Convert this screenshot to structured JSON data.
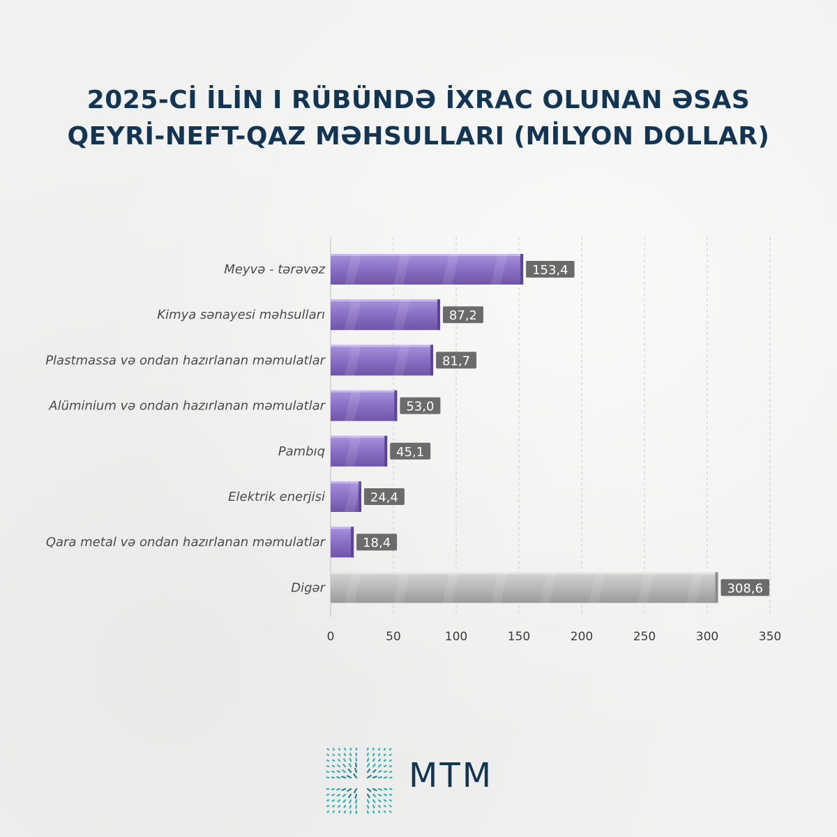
{
  "title_lines": [
    "2025-Cİ İLİN I RÜBÜNDƏ İXRAC OLUNAN ƏSAS",
    "QEYRİ-NEFT-QAZ MƏHSULLARI (MİLYON DOLLAR)"
  ],
  "colors": {
    "title": "#123553",
    "bar_purple": "#8b72c2",
    "bar_gray": "#b8b8b8",
    "label_box": "#6b6b6b"
  },
  "chart_data": {
    "type": "bar",
    "orientation": "horizontal",
    "title": "2025-Cİ İLİN I RÜBÜNDƏ İXRAC OLUNAN ƏSAS QEYRİ-NEFT-QAZ MƏHSULLARI (MİLYON DOLLAR)",
    "categories": [
      "Meyvə - tərəvəz",
      "Kimya sənayesi məhsulları",
      "Plastmassa və ondan hazırlanan məmulatlar",
      "Alüminium və ondan hazırlanan məmulatlar",
      "Pambıq",
      "Elektrik enerjisi",
      "Qara metal və ondan hazırlanan məmulatlar",
      "Digər"
    ],
    "values": [
      153.4,
      87.2,
      81.7,
      53.0,
      45.1,
      24.4,
      18.4,
      308.6
    ],
    "value_labels": [
      "153,4",
      "87,2",
      "81,7",
      "53,0",
      "45,1",
      "24,4",
      "18,4",
      "308,6"
    ],
    "bar_colors": [
      "purple",
      "purple",
      "purple",
      "purple",
      "purple",
      "purple",
      "purple",
      "gray"
    ],
    "xlim": [
      0,
      350
    ],
    "xticks": [
      0,
      50,
      100,
      150,
      200,
      250,
      300,
      350
    ],
    "grid": "vertical dashed",
    "xlabel": "",
    "ylabel": ""
  },
  "logo": {
    "text": "MTM"
  }
}
